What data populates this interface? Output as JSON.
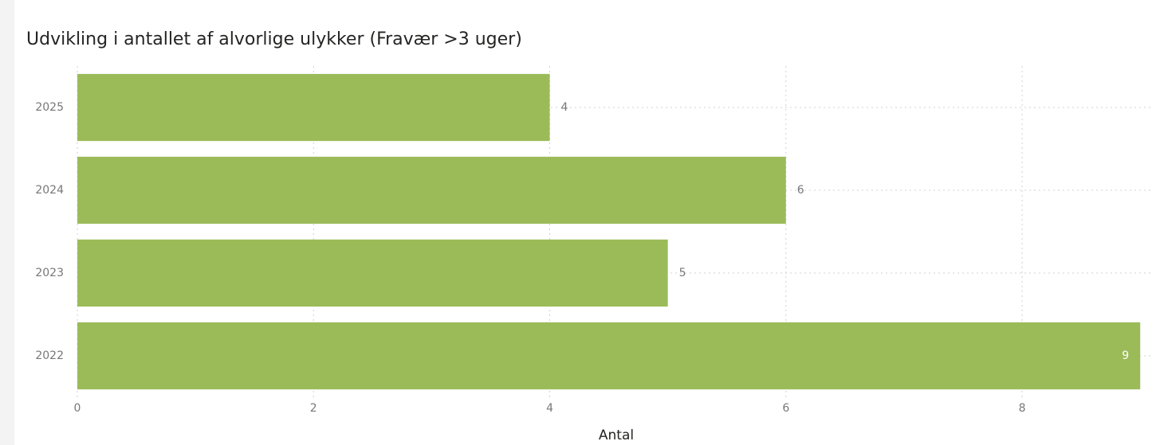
{
  "chart_data": {
    "type": "hbar",
    "title": "Udvikling i antallet af alvorlige ulykker (Fravær >3 uger)",
    "x_label": "Antal",
    "categories": [
      "2025",
      "2024",
      "2023",
      "2022"
    ],
    "values": [
      4,
      6,
      5,
      9
    ],
    "color": "#9bbb59",
    "xlim": [
      0,
      9.1
    ],
    "xticks": [
      0,
      2,
      4,
      6,
      8
    ],
    "grid": true
  }
}
